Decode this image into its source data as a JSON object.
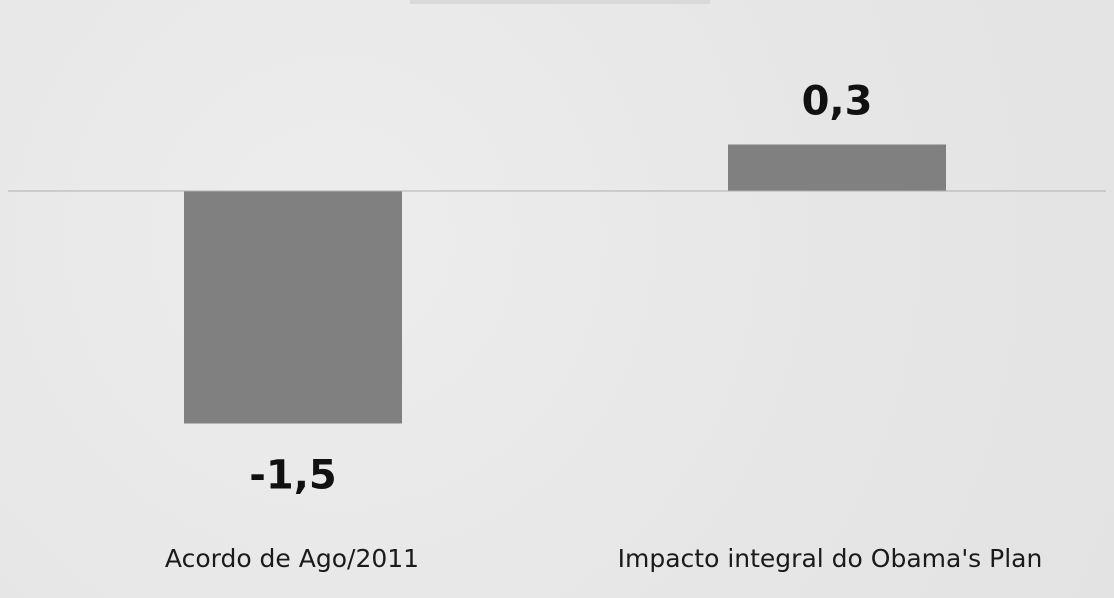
{
  "chart_data": {
    "type": "bar",
    "categories": [
      "Acordo de Ago/2011",
      "Impacto integral do Obama's Plan"
    ],
    "values": [
      -1.5,
      0.3
    ],
    "value_labels": [
      "-1,5",
      "0,3"
    ],
    "title": "",
    "xlabel": "",
    "ylabel": "",
    "ylim": [
      -1.5,
      0.3
    ],
    "grid": false,
    "legend": "none",
    "bar_color": "#808080",
    "baseline_color": "#b0b0b0"
  }
}
